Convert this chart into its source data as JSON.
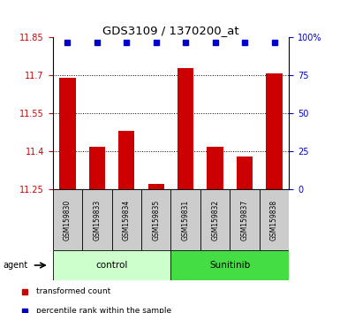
{
  "title": "GDS3109 / 1370200_at",
  "samples": [
    "GSM159830",
    "GSM159833",
    "GSM159834",
    "GSM159835",
    "GSM159831",
    "GSM159832",
    "GSM159837",
    "GSM159838"
  ],
  "bar_values": [
    11.69,
    11.42,
    11.48,
    11.27,
    11.73,
    11.42,
    11.38,
    11.71
  ],
  "ymin": 11.25,
  "ymax": 11.85,
  "yticks": [
    11.25,
    11.4,
    11.55,
    11.7,
    11.85
  ],
  "right_yticks": [
    0,
    25,
    50,
    75,
    100
  ],
  "right_ytick_labels": [
    "0",
    "25",
    "50",
    "75",
    "100%"
  ],
  "bar_color": "#cc0000",
  "percentile_color": "#0000cc",
  "bar_width": 0.55,
  "groups": [
    {
      "label": "control",
      "start": 0,
      "end": 4,
      "color": "#ccffcc"
    },
    {
      "label": "Sunitinib",
      "start": 4,
      "end": 8,
      "color": "#44dd44"
    }
  ],
  "agent_label": "agent",
  "legend_items": [
    {
      "color": "#cc0000",
      "label": "transformed count"
    },
    {
      "color": "#0000cc",
      "label": "percentile rank within the sample"
    }
  ],
  "background_color": "#ffffff",
  "grid_color": "#000000",
  "tick_label_color_left": "#cc0000",
  "tick_label_color_right": "#0000cc",
  "sample_box_color": "#cccccc",
  "figwidth": 3.85,
  "figheight": 3.54,
  "dpi": 100
}
